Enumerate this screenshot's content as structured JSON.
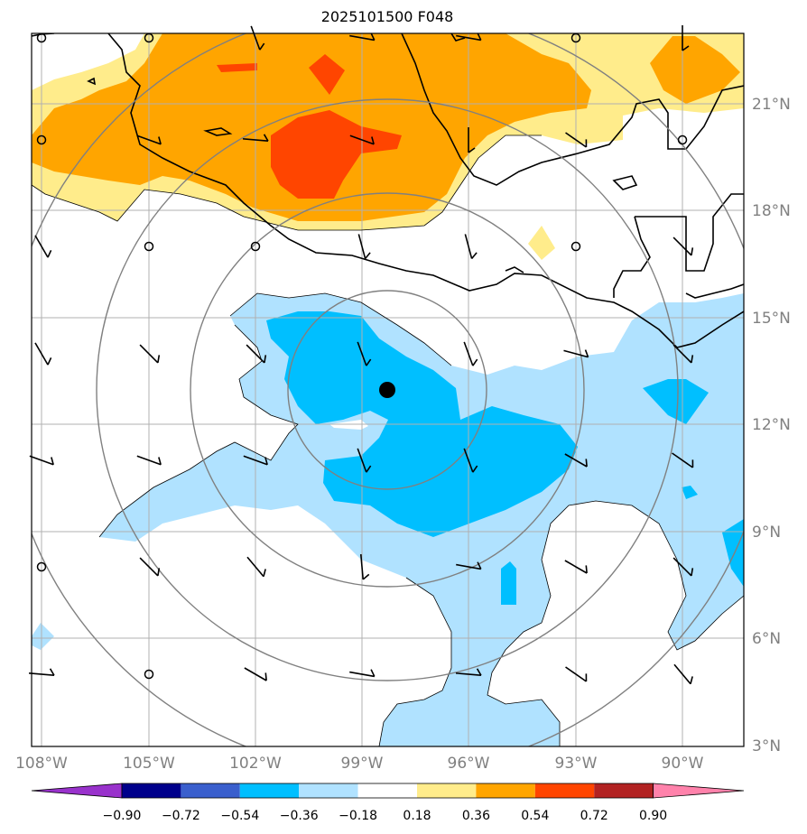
{
  "title": "2025101500 F048",
  "lon_labels": [
    "108°W",
    "105°W",
    "102°W",
    "99°W",
    "96°W",
    "93°W",
    "90°W"
  ],
  "lat_labels": [
    "21°N",
    "18°N",
    "15°N",
    "12°N",
    "9°N",
    "6°N",
    "3°N"
  ],
  "colorbar": {
    "ticks": [
      "−0.90",
      "−0.72",
      "−0.54",
      "−0.36",
      "−0.18",
      "0.18",
      "0.36",
      "0.54",
      "0.72",
      "0.90"
    ],
    "colors": [
      "#9932cc",
      "#00008b",
      "#3a5fcd",
      "#00bfff",
      "#b0e2ff",
      "#ffffff",
      "#ffec8b",
      "#ffa500",
      "#ff4500",
      "#b22222",
      "#ff82ab"
    ]
  },
  "field_colors": {
    "neg_light": "#b0e2ff",
    "neg_mid": "#00bfff",
    "pos_light": "#ffec8b",
    "pos_mid": "#ffa500",
    "pos_high": "#ff4500"
  },
  "storm_center_marker": "filled-circle",
  "wind_barb_icon": "wind-barb",
  "calm_icon": "calm-circle"
}
